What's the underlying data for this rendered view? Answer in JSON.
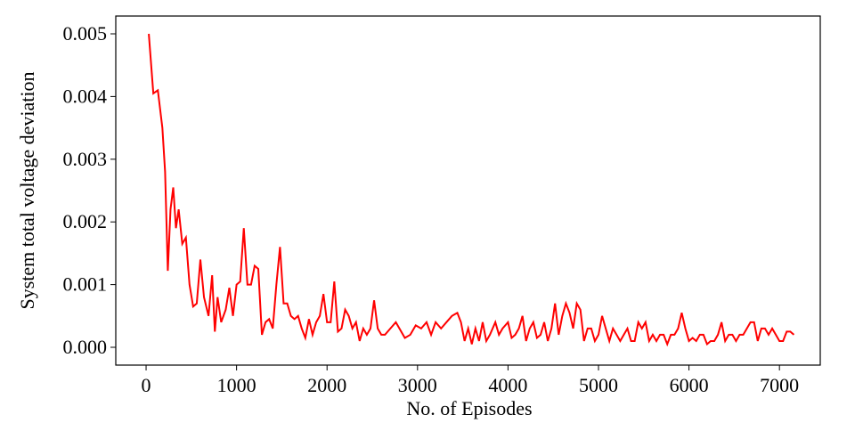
{
  "chart_data": {
    "type": "line",
    "xlabel": "No. of Episodes",
    "ylabel": "System total voltage deviation",
    "x": [
      30,
      80,
      130,
      180,
      210,
      240,
      270,
      300,
      330,
      360,
      400,
      440,
      480,
      520,
      560,
      600,
      640,
      690,
      730,
      760,
      790,
      830,
      880,
      920,
      960,
      1000,
      1040,
      1080,
      1120,
      1160,
      1200,
      1240,
      1280,
      1320,
      1360,
      1400,
      1440,
      1480,
      1520,
      1560,
      1600,
      1640,
      1680,
      1720,
      1760,
      1800,
      1840,
      1880,
      1920,
      1960,
      2000,
      2040,
      2080,
      2120,
      2160,
      2200,
      2240,
      2280,
      2320,
      2360,
      2400,
      2440,
      2480,
      2520,
      2560,
      2600,
      2640,
      2700,
      2760,
      2800,
      2860,
      2920,
      2980,
      3040,
      3100,
      3150,
      3200,
      3260,
      3320,
      3380,
      3440,
      3480,
      3520,
      3560,
      3600,
      3640,
      3680,
      3720,
      3760,
      3800,
      3860,
      3900,
      3940,
      4000,
      4040,
      4080,
      4120,
      4160,
      4200,
      4240,
      4280,
      4320,
      4360,
      4400,
      4440,
      4480,
      4520,
      4560,
      4600,
      4640,
      4680,
      4720,
      4760,
      4800,
      4840,
      4880,
      4920,
      4960,
      5000,
      5040,
      5080,
      5120,
      5160,
      5200,
      5240,
      5280,
      5320,
      5360,
      5400,
      5440,
      5480,
      5520,
      5560,
      5600,
      5640,
      5680,
      5720,
      5760,
      5800,
      5840,
      5880,
      5920,
      5960,
      6000,
      6040,
      6080,
      6120,
      6160,
      6200,
      6240,
      6280,
      6320,
      6360,
      6400,
      6440,
      6480,
      6520,
      6560,
      6600,
      6640,
      6680,
      6720,
      6760,
      6800,
      6840,
      6880,
      6920,
      6960,
      7000,
      7040,
      7080,
      7120,
      7160
    ],
    "series": [
      {
        "color": "#ff0000",
        "values": [
          0.005,
          0.00405,
          0.0041,
          0.0035,
          0.0028,
          0.00122,
          0.0022,
          0.00255,
          0.0019,
          0.0022,
          0.00165,
          0.00175,
          0.001,
          0.00065,
          0.0007,
          0.0014,
          0.0008,
          0.0005,
          0.00115,
          0.00025,
          0.0008,
          0.0004,
          0.0006,
          0.00095,
          0.0005,
          0.001,
          0.00105,
          0.0019,
          0.001,
          0.001,
          0.0013,
          0.00125,
          0.0002,
          0.0004,
          0.00045,
          0.0003,
          0.001,
          0.0016,
          0.0007,
          0.0007,
          0.0005,
          0.00045,
          0.0005,
          0.0003,
          0.00015,
          0.00045,
          0.0002,
          0.0004,
          0.0005,
          0.00085,
          0.0004,
          0.0004,
          0.00105,
          0.00025,
          0.0003,
          0.0006,
          0.0005,
          0.0003,
          0.0004,
          0.0001,
          0.0003,
          0.0002,
          0.0003,
          0.00075,
          0.0003,
          0.0002,
          0.0002,
          0.0003,
          0.0004,
          0.0003,
          0.00015,
          0.0002,
          0.00035,
          0.0003,
          0.0004,
          0.0002,
          0.0004,
          0.0003,
          0.0004,
          0.0005,
          0.00055,
          0.0004,
          0.0001,
          0.0003,
          5e-05,
          0.0003,
          0.0001,
          0.0004,
          0.0001,
          0.0002,
          0.0004,
          0.0002,
          0.0003,
          0.0004,
          0.00015,
          0.0002,
          0.0003,
          0.0005,
          0.0001,
          0.0003,
          0.0004,
          0.00015,
          0.0002,
          0.0004,
          0.0001,
          0.0003,
          0.0007,
          0.0002,
          0.0005,
          0.0007,
          0.00055,
          0.0003,
          0.0007,
          0.0006,
          0.0001,
          0.0003,
          0.0003,
          0.0001,
          0.0002,
          0.0005,
          0.0003,
          0.0001,
          0.0003,
          0.0002,
          0.0001,
          0.0002,
          0.0003,
          0.0001,
          0.0001,
          0.0004,
          0.0003,
          0.0004,
          0.0001,
          0.0002,
          0.0001,
          0.0002,
          0.0002,
          5e-05,
          0.0002,
          0.0002,
          0.0003,
          0.00055,
          0.0003,
          0.0001,
          0.00015,
          0.0001,
          0.0002,
          0.0002,
          5e-05,
          0.0001,
          0.0001,
          0.0002,
          0.0004,
          0.0001,
          0.0002,
          0.0002,
          0.0001,
          0.0002,
          0.0002,
          0.0003,
          0.0004,
          0.0004,
          0.0001,
          0.0003,
          0.0003,
          0.0002,
          0.0003,
          0.0002,
          0.0001,
          0.0001,
          0.00025,
          0.00025,
          0.0002
        ]
      }
    ],
    "xlim": [
      -335,
      7451
    ],
    "ylim": [
      -0.000284,
      0.005284
    ],
    "xticks": [
      0,
      1000,
      2000,
      3000,
      4000,
      5000,
      6000,
      7000
    ],
    "yticks": [
      {
        "value": 0,
        "label": "0.000"
      },
      {
        "value": 0.001,
        "label": "0.001"
      },
      {
        "value": 0.002,
        "label": "0.002"
      },
      {
        "value": 0.003,
        "label": "0.003"
      },
      {
        "value": 0.004,
        "label": "0.004"
      },
      {
        "value": 0.005,
        "label": "0.005"
      }
    ],
    "grid": false
  }
}
